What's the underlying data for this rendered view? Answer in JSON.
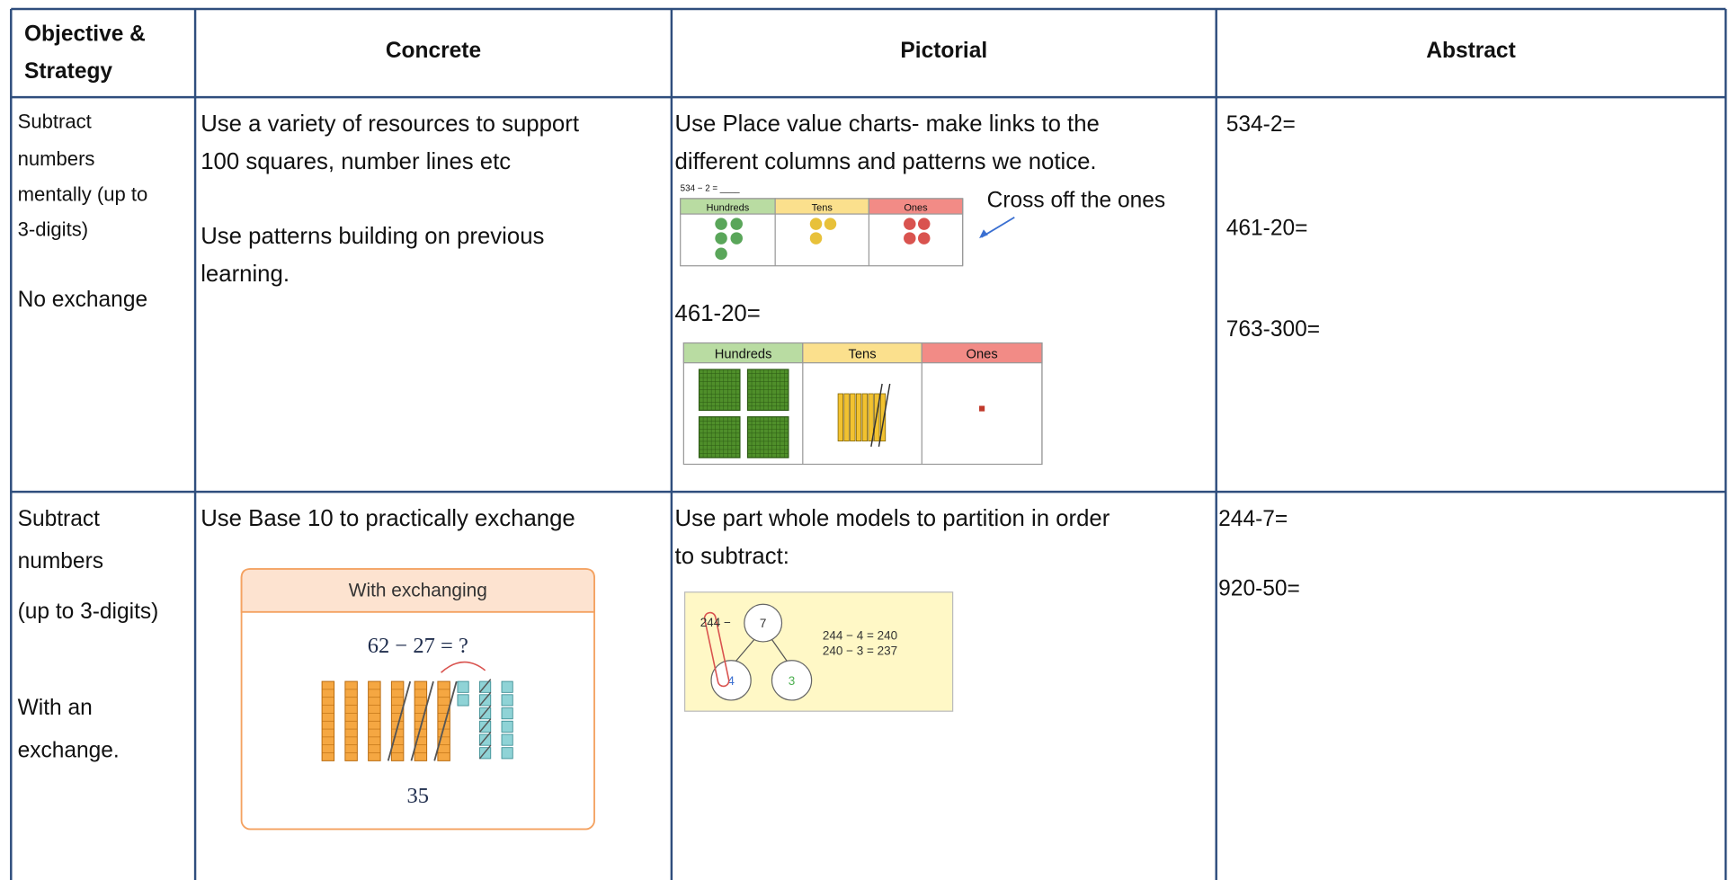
{
  "table": {
    "headers": [
      "Objective &",
      "Strategy",
      "Concrete",
      "Pictorial",
      "Abstract"
    ],
    "rows": [
      {
        "objective": [
          "Subtract",
          "numbers",
          "mentally (up to",
          "3-digits)",
          "No exchange"
        ],
        "concrete": [
          "Use a variety of resources to support",
          "100 squares, number lines etc",
          "Use patterns building on previous",
          "learning."
        ],
        "pictorial": {
          "text": [
            "Use Place value charts- make links to the",
            "different columns and patterns we notice."
          ],
          "chart_1": {
            "title": "534 − 2 = ____",
            "columns": [
              "Hundreds",
              "Tens",
              "Ones"
            ]
          },
          "note": "Cross off the ones",
          "question": "461-20=",
          "chart_2": {
            "columns": [
              "Hundreds",
              "Tens",
              "Ones"
            ]
          }
        },
        "abstract": [
          "534-2=",
          "461-20=",
          "763-300="
        ]
      },
      {
        "objective": [
          "Subtract",
          "numbers",
          "(up to 3-digits)",
          "With an",
          "exchange."
        ],
        "concrete": {
          "text": [
            "Use Base 10 to practically exchange"
          ],
          "image": {
            "title": "With exchanging",
            "equation": "62 − 27 = ?",
            "answer": "35"
          }
        },
        "pictorial": {
          "text": [
            "Use part whole models to partition in order",
            "to subtract:"
          ],
          "image": {
            "whole": "244 −",
            "parts": [
              "7",
              "4",
              "3"
            ],
            "steps": [
              "244 − 4 = 240",
              "240 − 3 = 237"
            ]
          }
        },
        "abstract": [
          "244-7=",
          "920-50="
        ]
      }
    ]
  }
}
